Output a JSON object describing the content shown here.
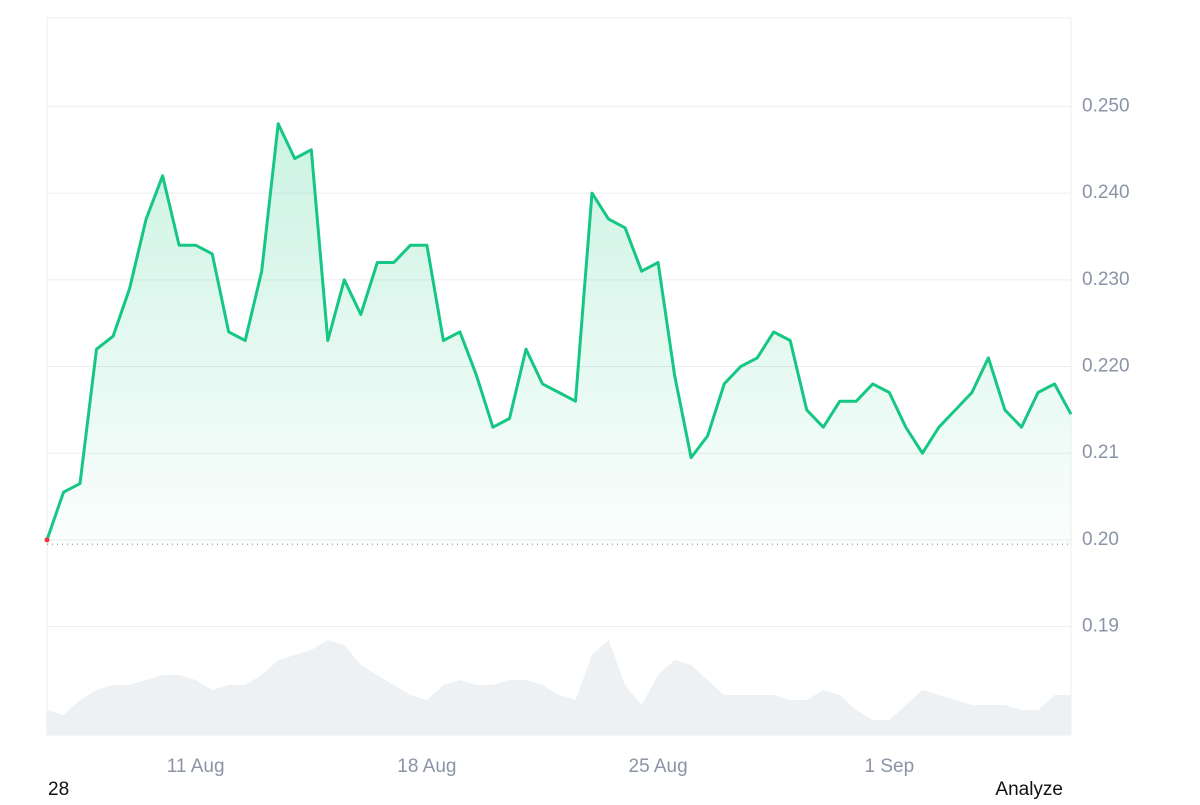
{
  "chart_data": {
    "type": "line",
    "categories": [
      null,
      null,
      null,
      null,
      null,
      null,
      null,
      null,
      null,
      "11 Aug",
      null,
      null,
      null,
      null,
      null,
      null,
      null,
      null,
      null,
      null,
      null,
      null,
      null,
      "18 Aug",
      null,
      null,
      null,
      null,
      null,
      null,
      null,
      null,
      null,
      null,
      null,
      null,
      null,
      "25 Aug",
      null,
      null,
      null,
      null,
      null,
      null,
      null,
      null,
      null,
      null,
      null,
      null,
      null,
      "1 Sep",
      null,
      null,
      null,
      null,
      null,
      null,
      null,
      null,
      null,
      null,
      null
    ],
    "series": [
      {
        "name": "Price",
        "color": "#16c784",
        "values": [
          0.2,
          0.2055,
          0.2065,
          0.222,
          0.2235,
          0.229,
          0.237,
          0.242,
          0.234,
          0.234,
          0.233,
          0.224,
          0.223,
          0.231,
          0.248,
          0.244,
          0.245,
          0.223,
          0.23,
          0.226,
          0.232,
          0.232,
          0.234,
          0.234,
          0.223,
          0.224,
          0.219,
          0.213,
          0.214,
          0.222,
          0.218,
          0.217,
          0.216,
          0.24,
          0.237,
          0.236,
          0.231,
          0.232,
          0.219,
          0.2095,
          0.212,
          0.218,
          0.22,
          0.221,
          0.224,
          0.223,
          0.215,
          0.213,
          0.216,
          0.216,
          0.218,
          0.217,
          0.213,
          0.21,
          0.213,
          0.215,
          0.217,
          0.221,
          0.215,
          0.213,
          0.217,
          0.218,
          0.2145
        ]
      },
      {
        "name": "Volume",
        "color": "#eef1f4",
        "axis": "y2",
        "values": [
          0.25,
          0.2,
          0.35,
          0.45,
          0.5,
          0.5,
          0.55,
          0.6,
          0.6,
          0.55,
          0.45,
          0.5,
          0.5,
          0.6,
          0.75,
          0.8,
          0.85,
          0.95,
          0.9,
          0.7,
          0.6,
          0.5,
          0.4,
          0.35,
          0.5,
          0.55,
          0.5,
          0.5,
          0.55,
          0.55,
          0.5,
          0.4,
          0.35,
          0.8,
          0.95,
          0.5,
          0.3,
          0.6,
          0.75,
          0.7,
          0.55,
          0.4,
          0.4,
          0.4,
          0.4,
          0.35,
          0.35,
          0.45,
          0.4,
          0.25,
          0.15,
          0.15,
          0.3,
          0.45,
          0.4,
          0.35,
          0.3,
          0.3,
          0.3,
          0.25,
          0.25,
          0.4,
          0.4
        ]
      }
    ],
    "baseline": 0.1995,
    "ylim": [
      0.1775,
      0.2602
    ],
    "yticks": [
      0.19,
      {
        "value": 0.2,
        "label": "0.20"
      },
      0.21,
      {
        "value": 0.22,
        "label": "0.220"
      },
      {
        "value": 0.23,
        "label": "0.230"
      },
      {
        "value": 0.24,
        "label": "0.240"
      },
      {
        "value": 0.25,
        "label": "0.250"
      }
    ],
    "y2lim": [
      0,
      7.17
    ],
    "grid": true,
    "footer_left": "28",
    "footer_right": "Analyze"
  }
}
